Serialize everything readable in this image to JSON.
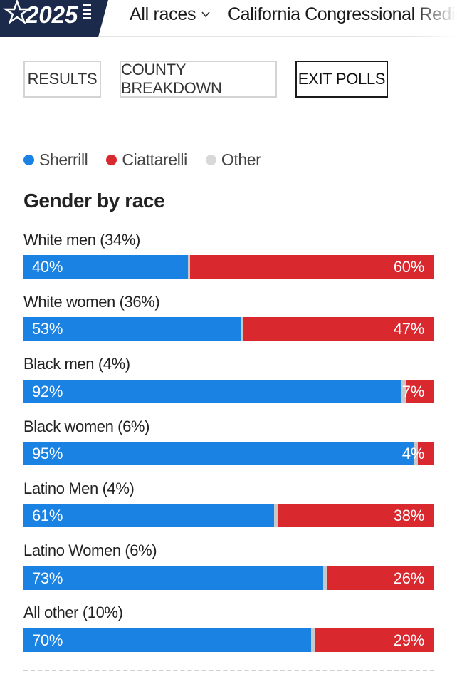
{
  "header": {
    "logo_text": "2025",
    "races_label": "All races",
    "race_title": "California Congressional Redistr"
  },
  "tabs": [
    {
      "label": "RESULTS",
      "active": false
    },
    {
      "label": "COUNTY BREAKDOWN",
      "active": false
    },
    {
      "label": "EXIT POLLS",
      "active": true
    }
  ],
  "legend": [
    {
      "label": "Sherrill",
      "color": "#1a82e2"
    },
    {
      "label": "Ciattarelli",
      "color": "#d9282e"
    },
    {
      "label": "Other",
      "color": "#d8d8d8"
    }
  ],
  "section": {
    "title": "Gender by race"
  },
  "rows": [
    {
      "label": "White men (34%)",
      "sherrill": 40,
      "ciattarelli": 60,
      "sherrill_label": "40%",
      "ciattarelli_label": "60%"
    },
    {
      "label": "White women (36%)",
      "sherrill": 53,
      "ciattarelli": 47,
      "sherrill_label": "53%",
      "ciattarelli_label": "47%"
    },
    {
      "label": "Black men (4%)",
      "sherrill": 92,
      "ciattarelli": 7,
      "sherrill_label": "92%",
      "ciattarelli_label": "7%"
    },
    {
      "label": "Black women (6%)",
      "sherrill": 95,
      "ciattarelli": 4,
      "sherrill_label": "95%",
      "ciattarelli_label": "4%"
    },
    {
      "label": "Latino Men (4%)",
      "sherrill": 61,
      "ciattarelli": 38,
      "sherrill_label": "61%",
      "ciattarelli_label": "38%"
    },
    {
      "label": "Latino Women (6%)",
      "sherrill": 73,
      "ciattarelli": 26,
      "sherrill_label": "73%",
      "ciattarelli_label": "26%"
    },
    {
      "label": "All other (10%)",
      "sherrill": 70,
      "ciattarelli": 29,
      "sherrill_label": "70%",
      "ciattarelli_label": "29%"
    }
  ]
}
